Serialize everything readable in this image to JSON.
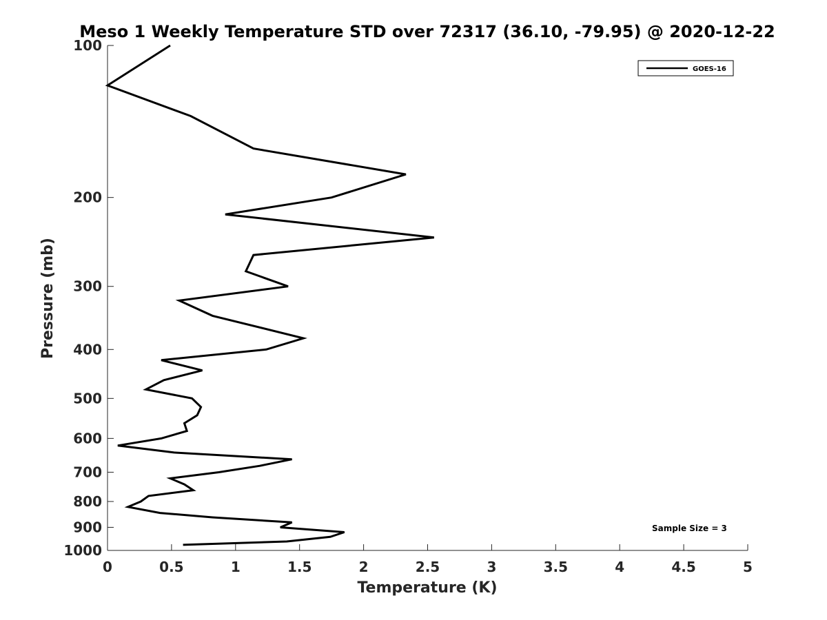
{
  "chart_data": {
    "type": "line",
    "title": "Meso 1 Weekly Temperature STD over 72317 (36.10, -79.95) @ 2020-12-22",
    "xlabel": "Temperature (K)",
    "ylabel": "Pressure (mb)",
    "xlim": [
      0,
      5
    ],
    "ylim": [
      100,
      1000
    ],
    "y_scale": "log",
    "y_reversed": true,
    "x_ticks": [
      0,
      0.5,
      1,
      1.5,
      2,
      2.5,
      3,
      3.5,
      4,
      4.5,
      5
    ],
    "x_tick_labels": [
      "0",
      "0.5",
      "1",
      "1.5",
      "2",
      "2.5",
      "3",
      "3.5",
      "4",
      "4.5",
      "5"
    ],
    "y_ticks": [
      100,
      200,
      300,
      400,
      500,
      600,
      700,
      800,
      900,
      1000
    ],
    "y_tick_labels": [
      "100",
      "200",
      "300",
      "400",
      "500",
      "600",
      "700",
      "800",
      "900",
      "1000"
    ],
    "grid": false,
    "legend_position": "top-right",
    "series": [
      {
        "name": "GOES-16",
        "color": "#000000",
        "points": [
          [
            0.49,
            100
          ],
          [
            0.0,
            120
          ],
          [
            0.65,
            138
          ],
          [
            1.14,
            160
          ],
          [
            2.33,
            180
          ],
          [
            1.75,
            200
          ],
          [
            0.92,
            216
          ],
          [
            2.55,
            240
          ],
          [
            1.14,
            260
          ],
          [
            1.08,
            280
          ],
          [
            1.41,
            300
          ],
          [
            0.56,
            320
          ],
          [
            0.82,
            343
          ],
          [
            1.53,
            380
          ],
          [
            1.24,
            400
          ],
          [
            0.42,
            420
          ],
          [
            0.74,
            440
          ],
          [
            0.44,
            460
          ],
          [
            0.3,
            480
          ],
          [
            0.66,
            500
          ],
          [
            0.73,
            520
          ],
          [
            0.7,
            540
          ],
          [
            0.6,
            560
          ],
          [
            0.62,
            580
          ],
          [
            0.42,
            600
          ],
          [
            0.08,
            620
          ],
          [
            0.52,
            640
          ],
          [
            1.44,
            660
          ],
          [
            1.19,
            680
          ],
          [
            0.87,
            700
          ],
          [
            0.49,
            720
          ],
          [
            0.6,
            740
          ],
          [
            0.67,
            760
          ],
          [
            0.32,
            780
          ],
          [
            0.26,
            800
          ],
          [
            0.16,
            820
          ],
          [
            0.41,
            843
          ],
          [
            0.82,
            860
          ],
          [
            1.44,
            880
          ],
          [
            1.35,
            900
          ],
          [
            1.85,
            920
          ],
          [
            1.74,
            940
          ],
          [
            1.4,
            960
          ],
          [
            0.59,
            975
          ]
        ]
      }
    ],
    "annotations": [
      "Sample Size = 3"
    ]
  }
}
